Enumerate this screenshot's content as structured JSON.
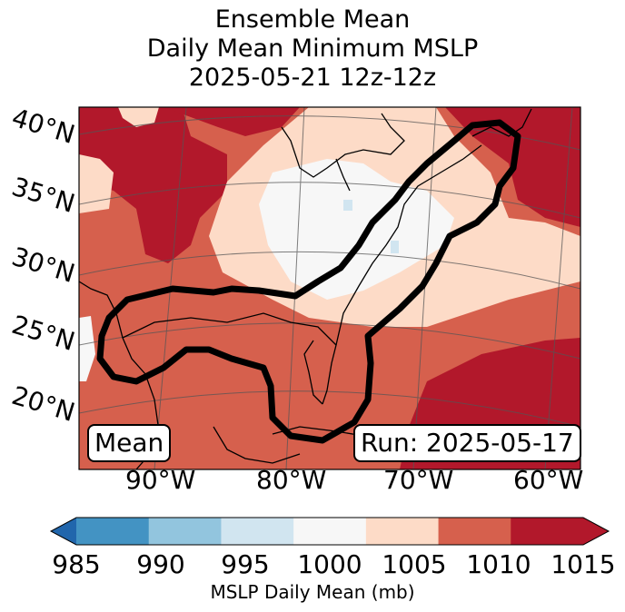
{
  "title": {
    "line1": "Ensemble Mean",
    "line2": "Daily Mean Minimum MSLP",
    "line3": "2025-05-21 12z-12z"
  },
  "map": {
    "lat_labels": [
      "40°N",
      "35°N",
      "30°N",
      "25°N",
      "20°N"
    ],
    "lon_labels": [
      "90°W",
      "80°W",
      "70°W",
      "60°W"
    ],
    "mean_box": "Mean",
    "run_box": "Run: 2025-05-17",
    "colors": {
      "very_high": "#b2182b",
      "high": "#d6604d",
      "mid": "#fddbc7",
      "neutral": "#f7f7f7",
      "low": "#d1e5f0",
      "outline": "#000000"
    }
  },
  "colorbar": {
    "ticks": [
      "985",
      "990",
      "995",
      "1000",
      "1005",
      "1010",
      "1015"
    ],
    "colors": [
      "#4393c3",
      "#92c5de",
      "#d1e5f0",
      "#f7f7f7",
      "#fddbc7",
      "#d6604d",
      "#b2182b"
    ],
    "under_color": "#2166ac",
    "over_color": "#b2182b",
    "label": "MSLP Daily Mean (mb)"
  }
}
